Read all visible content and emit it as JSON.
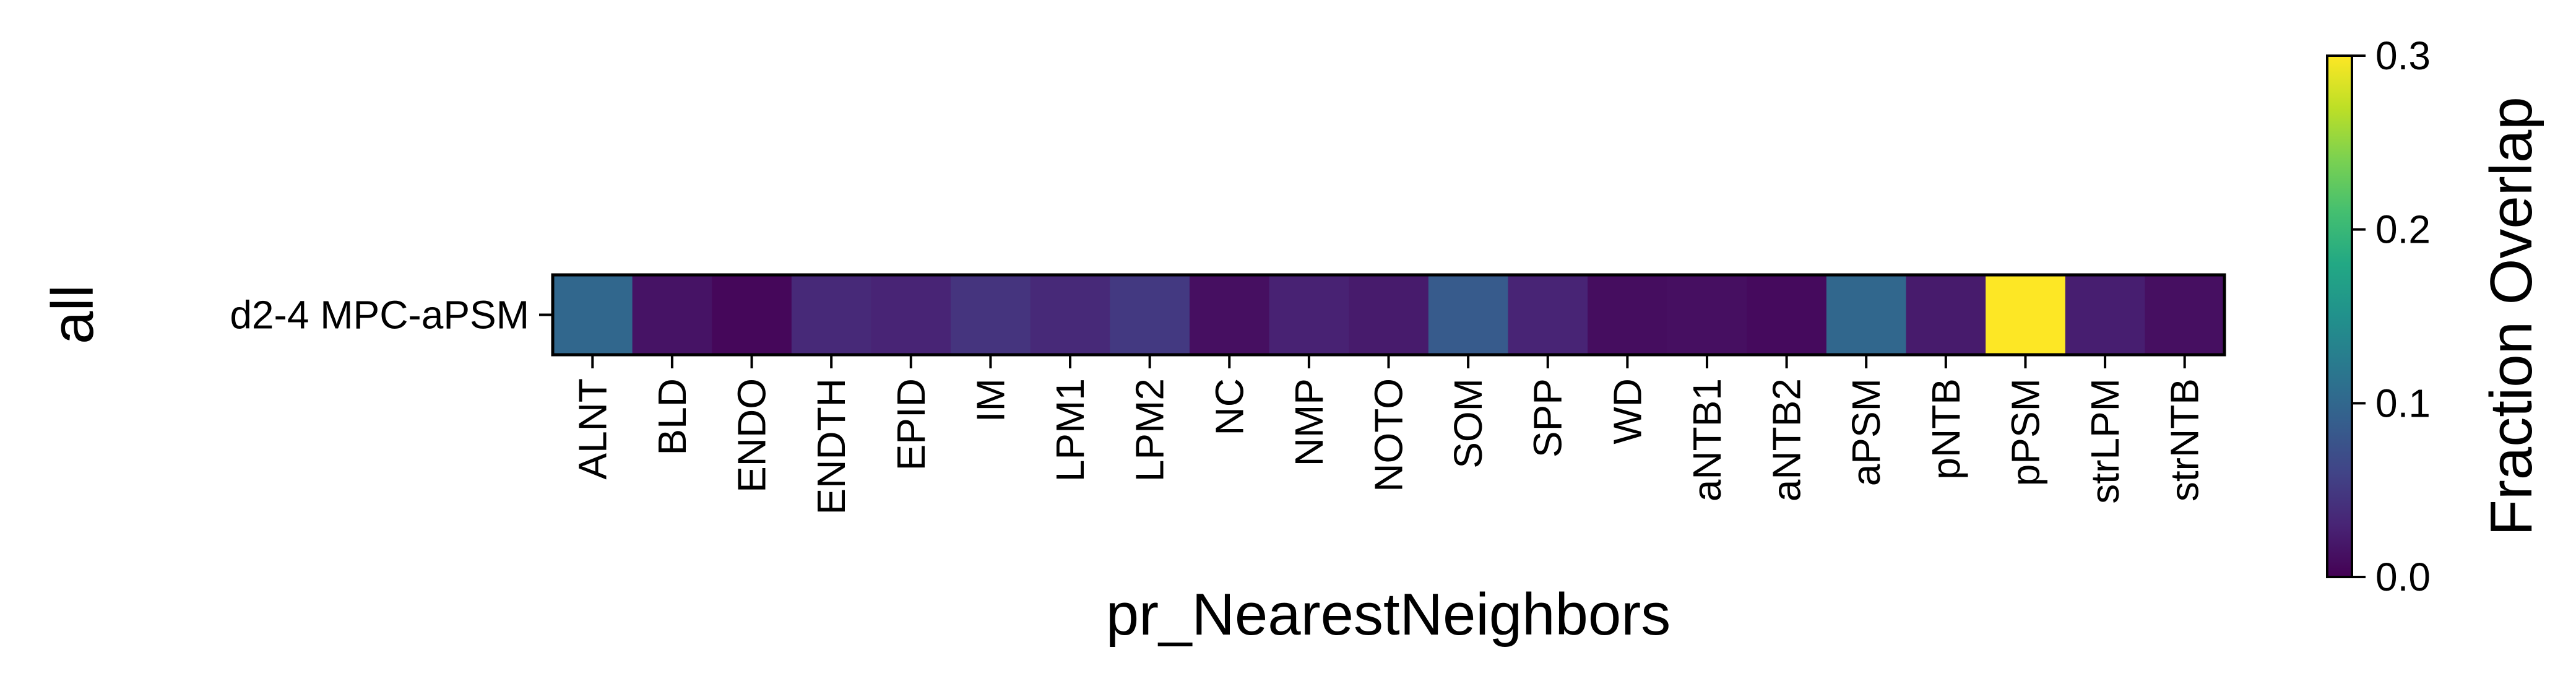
{
  "chart_data": {
    "type": "heatmap",
    "title": "",
    "xlabel": "pr_NearestNeighbors",
    "ylabel": "all",
    "rows": [
      "d2-4 MPC-aPSM"
    ],
    "columns": [
      "ALNT",
      "BLD",
      "ENDO",
      "ENDTH",
      "EPID",
      "IM",
      "LPM1",
      "LPM2",
      "NC",
      "NMP",
      "NOTO",
      "SOM",
      "SPP",
      "WD",
      "aNTB1",
      "aNTB2",
      "aPSM",
      "pNTB",
      "pPSM",
      "strLPM",
      "strNTB"
    ],
    "values": [
      [
        0.1,
        0.015,
        0.005,
        0.035,
        0.03,
        0.045,
        0.035,
        0.05,
        0.012,
        0.028,
        0.022,
        0.085,
        0.03,
        0.01,
        0.012,
        0.008,
        0.1,
        0.022,
        0.3,
        0.025,
        0.012
      ]
    ],
    "colorbar": {
      "label": "Fraction Overlap",
      "range": [
        0.0,
        0.3
      ],
      "ticks": [
        "0.0",
        "0.1",
        "0.2",
        "0.3"
      ],
      "colormap": "viridis"
    },
    "grid": false
  }
}
